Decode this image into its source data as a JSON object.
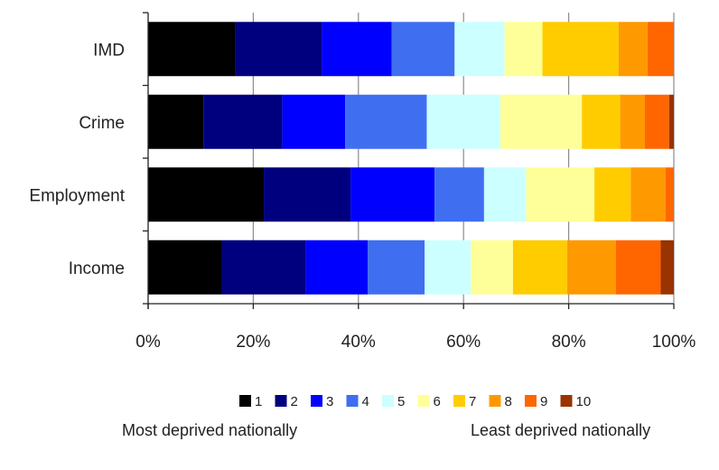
{
  "chart_data": {
    "type": "bar",
    "orientation": "horizontal",
    "stacked": true,
    "categories": [
      "IMD",
      "Crime",
      "Employment",
      "Income"
    ],
    "xlim": [
      0,
      100
    ],
    "x_ticks": [
      "0%",
      "20%",
      "40%",
      "60%",
      "80%",
      "100%"
    ],
    "grid": true,
    "legend_position": "bottom",
    "series": [
      {
        "name": "1",
        "color": "#000000",
        "values": [
          16.5,
          10.5,
          22.0,
          14.0
        ]
      },
      {
        "name": "2",
        "color": "#00007f",
        "values": [
          16.5,
          15.0,
          16.5,
          16.0
        ]
      },
      {
        "name": "3",
        "color": "#0000ff",
        "values": [
          13.3,
          12.0,
          16.0,
          11.8
        ]
      },
      {
        "name": "4",
        "color": "#3f6ff0",
        "values": [
          12.0,
          15.5,
          9.4,
          10.8
        ]
      },
      {
        "name": "5",
        "color": "#ccffff",
        "values": [
          9.5,
          14.0,
          8.0,
          8.8
        ]
      },
      {
        "name": "6",
        "color": "#ffff99",
        "values": [
          7.2,
          15.5,
          13.0,
          8.0
        ]
      },
      {
        "name": "7",
        "color": "#ffcc00",
        "values": [
          14.5,
          7.3,
          6.9,
          10.3
        ]
      },
      {
        "name": "8",
        "color": "#ff9900",
        "values": [
          5.5,
          4.7,
          6.6,
          9.3
        ]
      },
      {
        "name": "9",
        "color": "#ff6600",
        "values": [
          5.0,
          4.6,
          1.6,
          8.5
        ]
      },
      {
        "name": "10",
        "color": "#993300",
        "values": [
          0.0,
          0.9,
          0.0,
          2.5
        ]
      }
    ]
  },
  "annotations": {
    "left": "Most deprived nationally",
    "right": "Least deprived nationally"
  }
}
